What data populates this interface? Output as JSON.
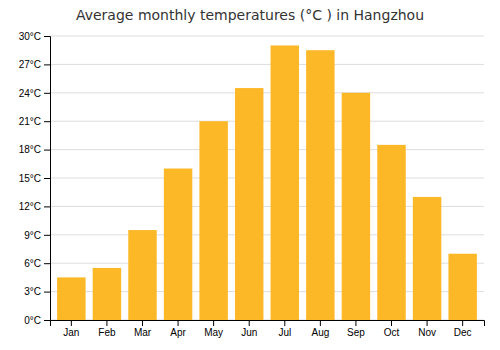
{
  "chart_data": {
    "type": "bar",
    "title": "Average monthly temperatures (°C ) in Hangzhou",
    "categories": [
      "Jan",
      "Feb",
      "Mar",
      "Apr",
      "May",
      "Jun",
      "Jul",
      "Aug",
      "Sep",
      "Oct",
      "Nov",
      "Dec"
    ],
    "values": [
      4.5,
      5.5,
      9.5,
      16.0,
      21.0,
      24.5,
      29.0,
      28.5,
      24.0,
      18.5,
      13.0,
      7.0
    ],
    "color": "#FDB827",
    "ylim": [
      0,
      30
    ],
    "yticks": [
      {
        "value": 0,
        "label": "0°C"
      },
      {
        "value": 3,
        "label": "3°C"
      },
      {
        "value": 6,
        "label": "6°C"
      },
      {
        "value": 9,
        "label": "9°C"
      },
      {
        "value": 12,
        "label": "12°C"
      },
      {
        "value": 15,
        "label": "15°C"
      },
      {
        "value": 18,
        "label": "18°C"
      },
      {
        "value": 21,
        "label": "21°C"
      },
      {
        "value": 24,
        "label": "24°C"
      },
      {
        "value": 27,
        "label": "27°C"
      },
      {
        "value": 30,
        "label": "30°C"
      }
    ],
    "grid": true
  }
}
